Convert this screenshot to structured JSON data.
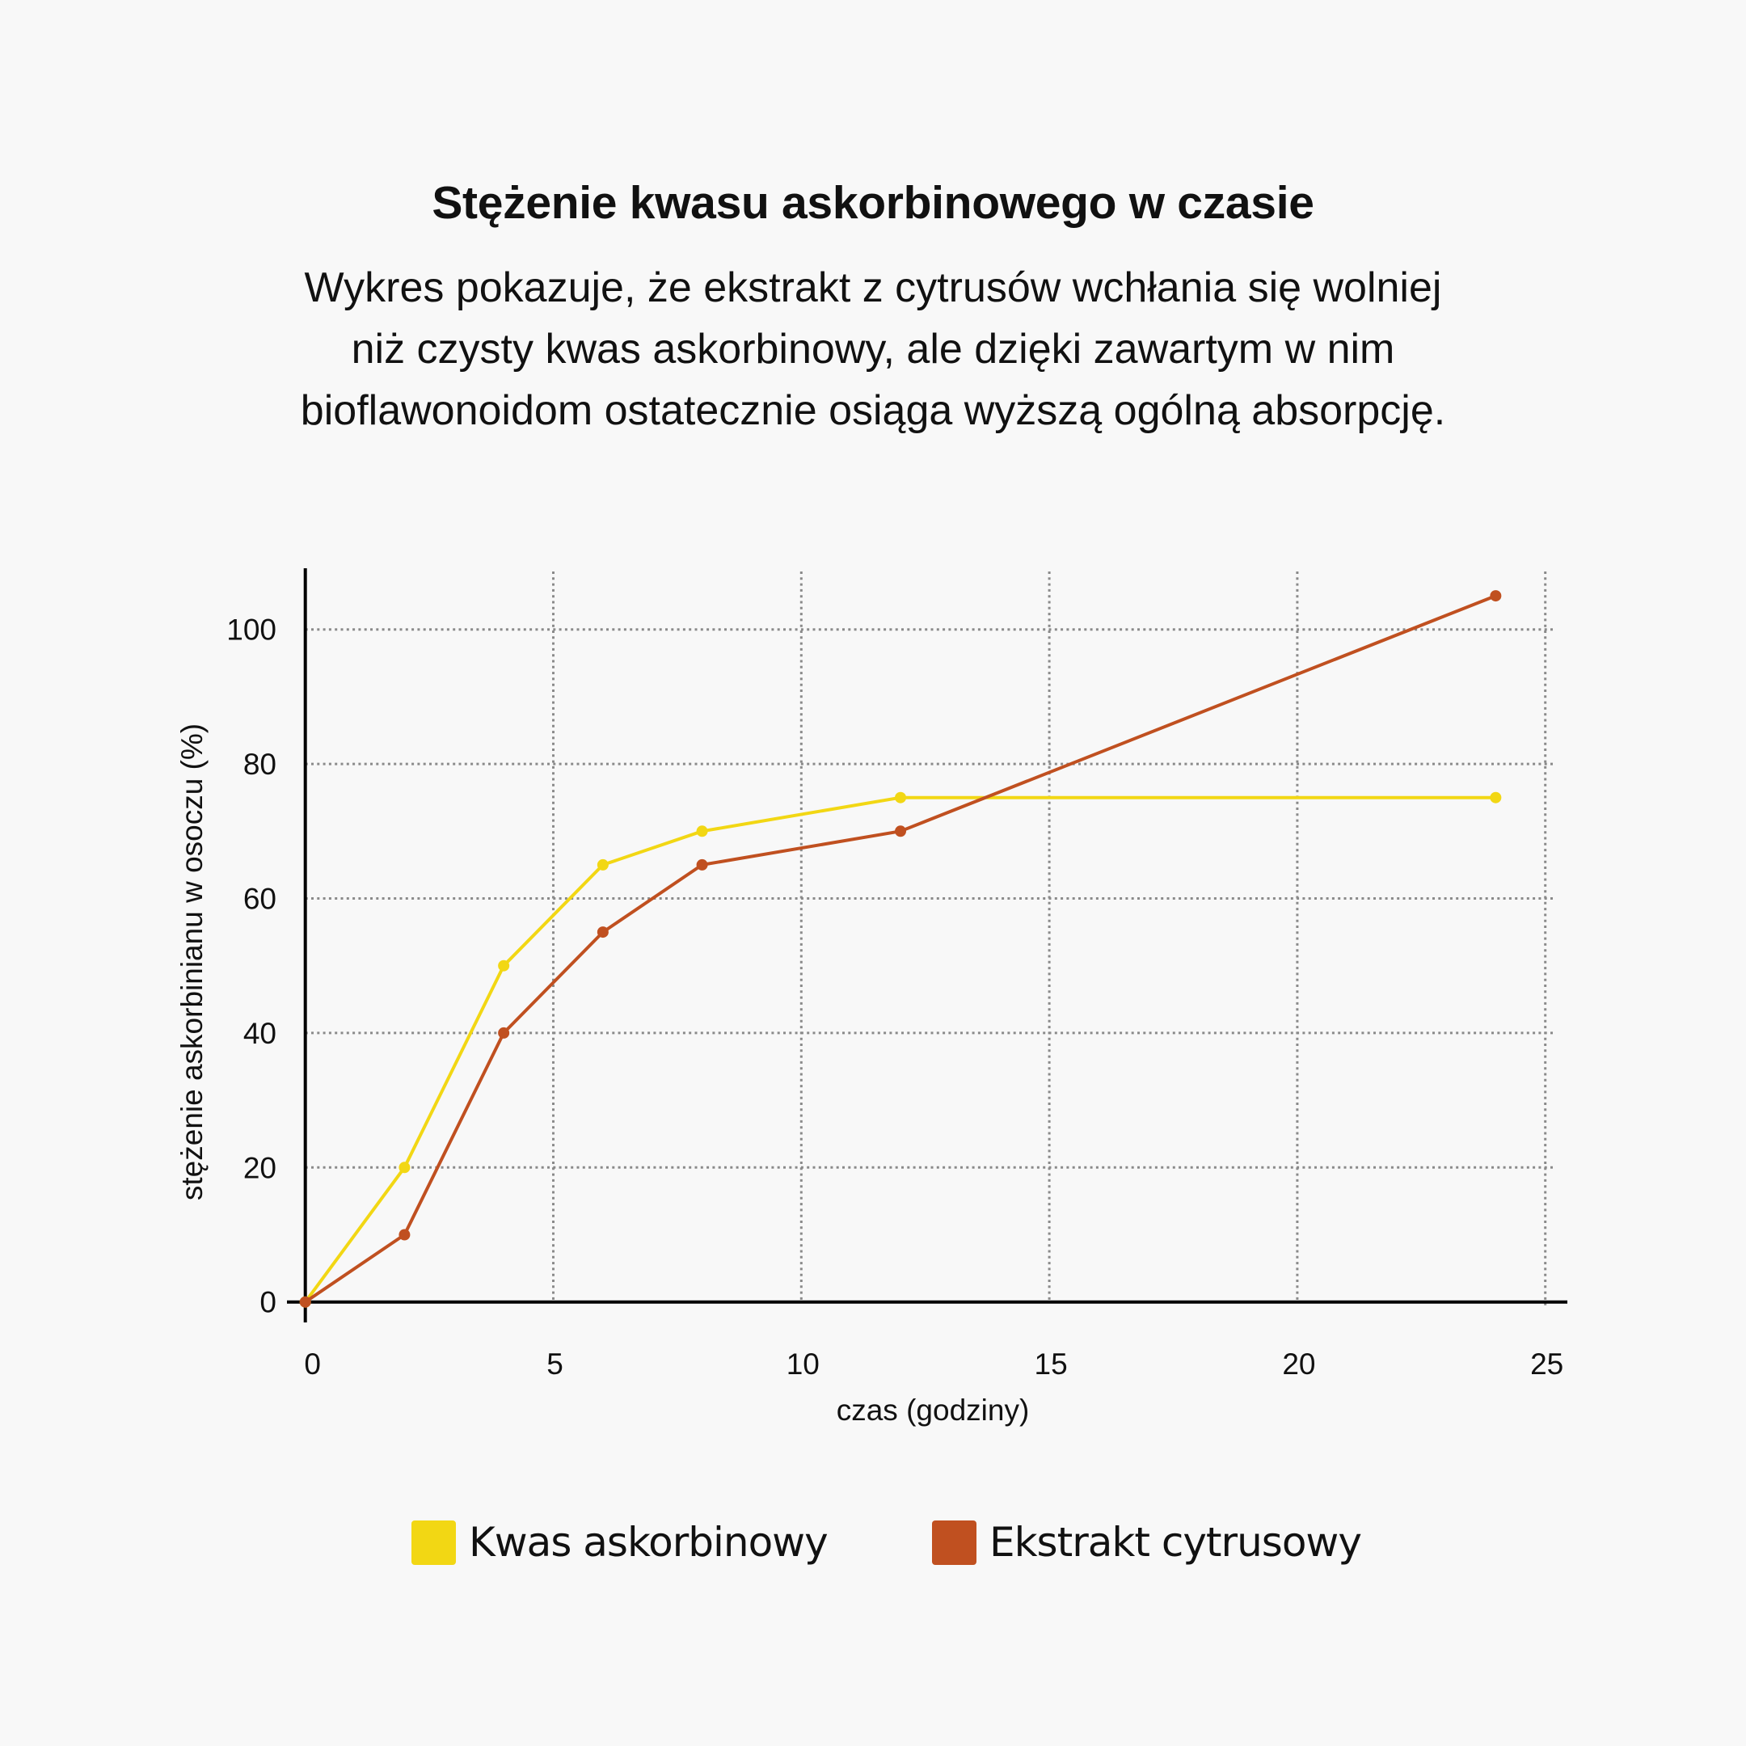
{
  "header": {
    "title": "Stężenie kwasu askorbinowego w czasie",
    "subtitle_lines": [
      "Wykres pokazuje, że ekstrakt z cytrusów wchłania się wolniej",
      "niż czysty kwas askorbinowy, ale dzięki zawartym w nim",
      "bioflawonoidom ostatecznie osiąga wyższą ogólną absorpcję."
    ]
  },
  "colors": {
    "background": "#f8f8f8",
    "kwas": "#f2d714",
    "ekstrakt": "#c05020",
    "grid": "#8a8a8a",
    "axis": "#000000"
  },
  "legend": {
    "items": [
      {
        "label": "Kwas askorbinowy",
        "color": "#f2d714"
      },
      {
        "label": "Ekstrakt cytrusowy",
        "color": "#c05020"
      }
    ]
  },
  "chart_data": {
    "type": "line",
    "title": "Stężenie kwasu askorbinowego w czasie",
    "subtitle": "Wykres pokazuje, że ekstrakt z cytrusów wchłania się wolniej niż czysty kwas askorbinowy, ale dzięki zawartym w nim bioflawonoidom ostatecznie osiąga wyższą ogólną absorpcję.",
    "xlabel": "czas (godziny)",
    "ylabel": "stężenie askorbinianu w osoczu (%)",
    "x": [
      0,
      2,
      4,
      6,
      8,
      12,
      24
    ],
    "series": [
      {
        "name": "Kwas askorbinowy",
        "color": "#f2d714",
        "values": [
          0,
          20,
          50,
          65,
          70,
          75,
          75
        ]
      },
      {
        "name": "Ekstrakt cytrusowy",
        "color": "#c05020",
        "values": [
          0,
          10,
          40,
          55,
          65,
          70,
          105
        ]
      }
    ],
    "xlim": [
      0,
      25
    ],
    "ylim": [
      0,
      110
    ],
    "xticks": [
      0,
      5,
      10,
      15,
      20,
      25
    ],
    "yticks": [
      0,
      20,
      40,
      60,
      80,
      100
    ],
    "grid": true,
    "grid_style": "dotted",
    "legend_position": "bottom",
    "markers": true
  }
}
